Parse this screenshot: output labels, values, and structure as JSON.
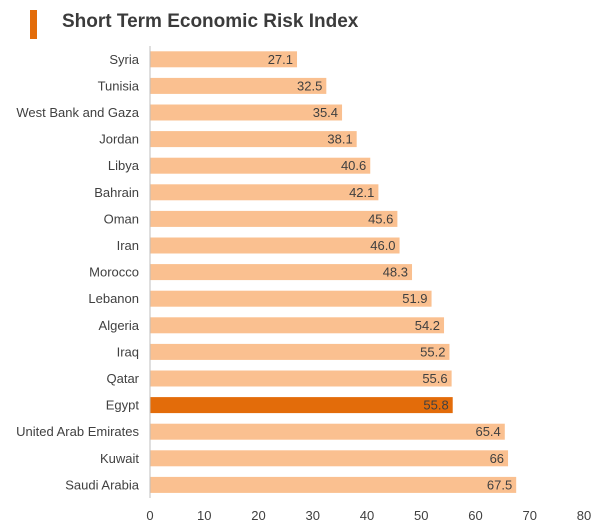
{
  "chart_data": {
    "type": "bar",
    "orientation": "horizontal",
    "title": "Short Term Economic Risk Index",
    "categories": [
      "Syria",
      "Tunisia",
      "West Bank and Gaza",
      "Jordan",
      "Libya",
      "Bahrain",
      "Oman",
      "Iran",
      "Morocco",
      "Lebanon",
      "Algeria",
      "Iraq",
      "Qatar",
      "Egypt",
      "United Arab Emirates",
      "Kuwait",
      "Saudi Arabia"
    ],
    "values": [
      27.1,
      32.5,
      35.4,
      38.1,
      40.6,
      42.1,
      45.6,
      46.0,
      48.3,
      51.9,
      54.2,
      55.2,
      55.6,
      55.8,
      65.4,
      66,
      67.5
    ],
    "value_labels": [
      "27.1",
      "32.5",
      "35.4",
      "38.1",
      "40.6",
      "42.1",
      "45.6",
      "46.0",
      "48.3",
      "51.9",
      "54.2",
      "55.2",
      "55.6",
      "55.8",
      "65.4",
      "66",
      "67.5"
    ],
    "highlight": "Egypt",
    "xlim": [
      0,
      80
    ],
    "xticks": [
      0,
      10,
      20,
      30,
      40,
      50,
      60,
      70,
      80
    ],
    "grid": false,
    "legend": "none",
    "colors": {
      "bar": "#fac090",
      "highlight": "#e36c0a",
      "title_accent": "#e36c0a",
      "text": "#404040"
    }
  }
}
